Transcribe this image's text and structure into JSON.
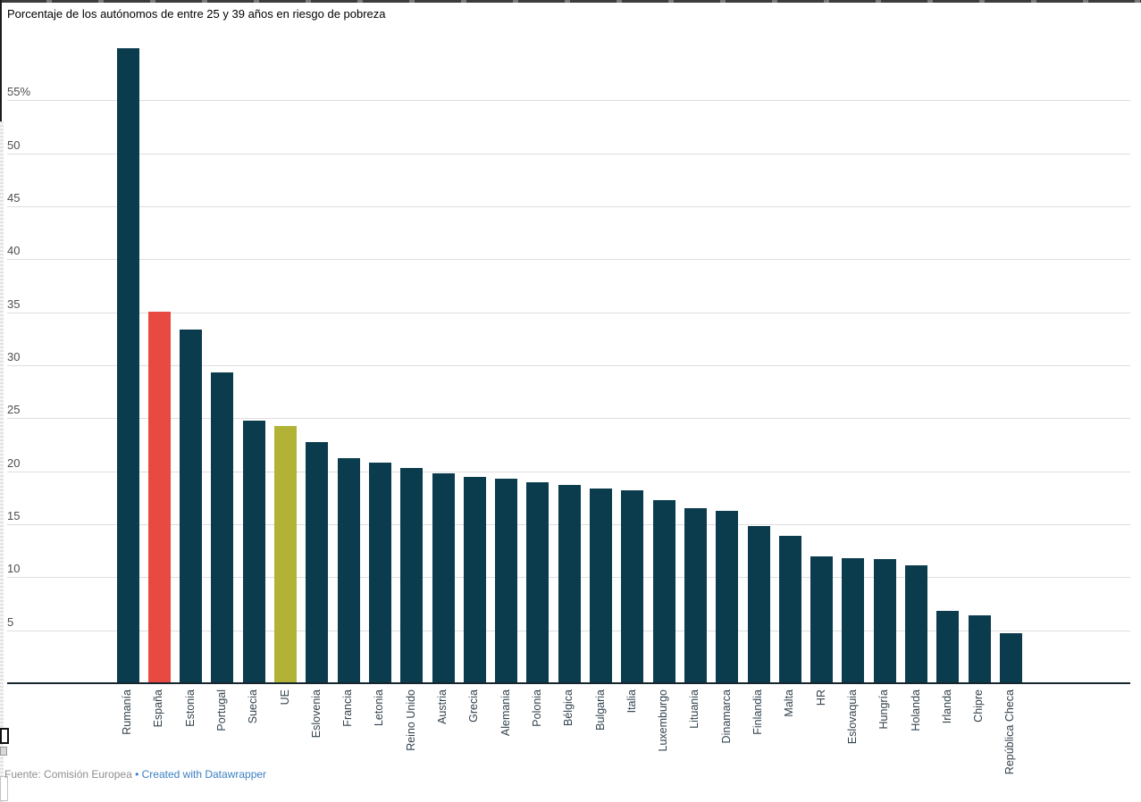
{
  "header": {
    "title": "Porcentaje de los autónomos de entre 25 y 39 años en riesgo de pobreza"
  },
  "chart_data": {
    "type": "bar",
    "title": "Porcentaje de los autónomos de entre 25 y 39 años en riesgo de pobreza",
    "xlabel": "",
    "ylabel": "",
    "unit": "%",
    "ylim": [
      0,
      60
    ],
    "grid": true,
    "legend_position": "none",
    "x_labels_rotated_degrees": -90,
    "ytick_values": [
      55,
      50,
      45,
      40,
      35,
      30,
      25,
      20,
      15,
      10,
      5
    ],
    "ytick_labels": [
      "55%",
      "50",
      "45",
      "40",
      "35",
      "30",
      "25",
      "20",
      "15",
      "10",
      "5"
    ],
    "categories": [
      "Rumanía",
      "España",
      "Estonia",
      "Portugal",
      "Suecia",
      "UE",
      "Eslovenia",
      "Francia",
      "Letonia",
      "Reino Unido",
      "Austria",
      "Grecia",
      "Alemania",
      "Polonia",
      "Bélgica",
      "Bulgaria",
      "Italia",
      "Luxemburgo",
      "Lituania",
      "Dinamarca",
      "Finlandia",
      "Malta",
      "HR",
      "Eslovaquia",
      "Hungría",
      "Holanda",
      "Irlanda",
      "Chipre",
      "República Checa"
    ],
    "values": [
      59.9,
      35.1,
      33.4,
      29.3,
      24.8,
      24.3,
      22.8,
      21.2,
      20.8,
      20.3,
      19.8,
      19.5,
      19.3,
      19.0,
      18.7,
      18.4,
      18.2,
      17.3,
      16.5,
      16.3,
      14.8,
      13.9,
      12.0,
      11.8,
      11.7,
      11.1,
      6.8,
      6.4,
      4.7
    ],
    "colors": {
      "bar_default": "#0b3c4d",
      "highlights": {
        "España": "#e84a42",
        "UE": "#b2b336"
      },
      "gridline": "#dedede",
      "axis_line": "#16262e",
      "ytick_text": "#4d4d4d",
      "xlabel_text": "#33434e"
    }
  },
  "footer": {
    "source_label": "Fuente: Comisión Europea",
    "bullet": "•",
    "credit_label": "Created with Datawrapper"
  }
}
